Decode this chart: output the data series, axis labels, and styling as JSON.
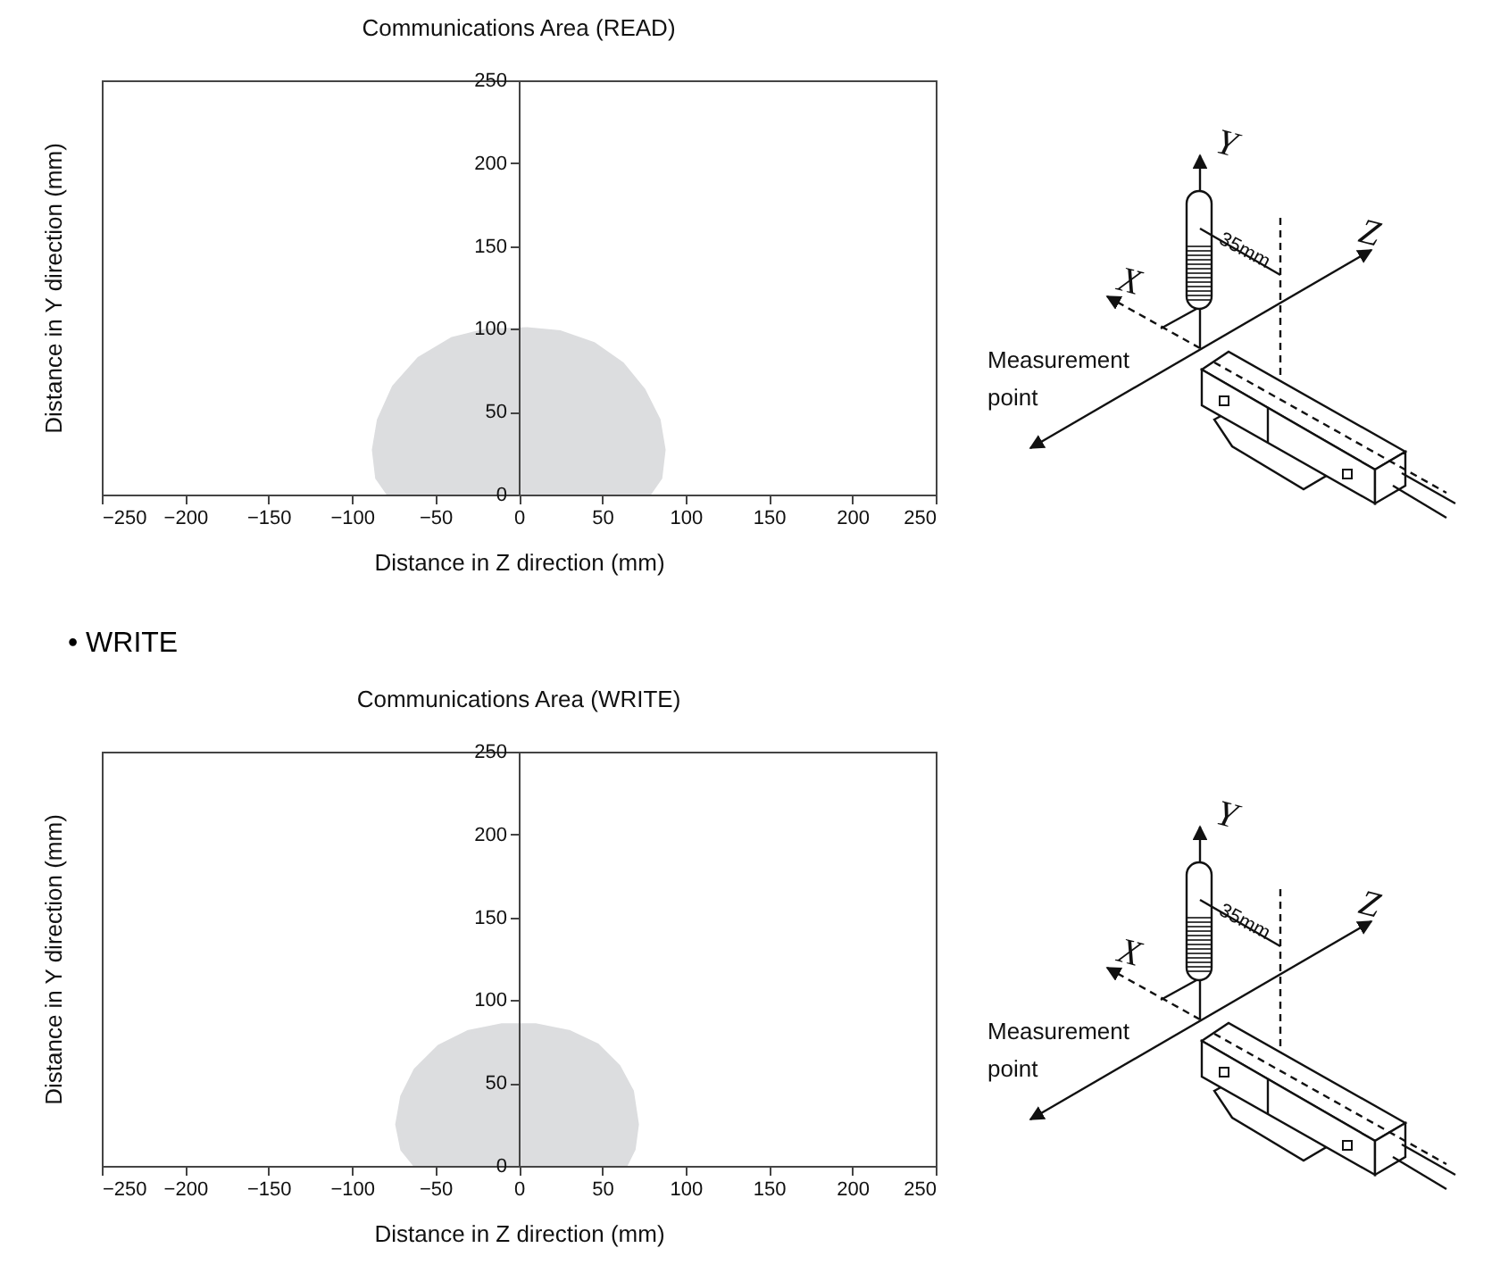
{
  "chart_data": [
    {
      "type": "area",
      "title": "Communications Area (READ)",
      "xlabel": "Distance in Z direction (mm)",
      "ylabel": "Distance in Y direction (mm)",
      "x": [
        -78,
        -85,
        -87,
        -84,
        -75,
        -60,
        -40,
        -20,
        5,
        25,
        45,
        62,
        75,
        84,
        87,
        85,
        78
      ],
      "series": [
        {
          "color": "#dcdddf",
          "values": [
            0,
            10,
            27,
            45,
            65,
            82,
            94,
            99,
            100,
            98,
            91,
            79,
            63,
            45,
            27,
            10,
            0
          ]
        }
      ],
      "xlim": [
        -250,
        250
      ],
      "xticks": [
        -250,
        -200,
        -150,
        -100,
        -50,
        0,
        50,
        100,
        150,
        200,
        250
      ],
      "ylim": [
        0,
        250
      ],
      "yticks": [
        0,
        50,
        100,
        150,
        200,
        250
      ],
      "grid": false,
      "annotations": [
        "Y",
        "Z",
        "X",
        "35mm",
        "Measurement point"
      ]
    },
    {
      "type": "area",
      "title": "Communications Area (WRITE)",
      "xlabel": "Distance in Z direction (mm)",
      "ylabel": "Distance in Y direction (mm)",
      "x": [
        -62,
        -70,
        -73,
        -70,
        -62,
        -48,
        -30,
        -10,
        10,
        30,
        47,
        60,
        68,
        71,
        69,
        64
      ],
      "series": [
        {
          "color": "#dcdddf",
          "values": [
            0,
            10,
            25,
            42,
            58,
            72,
            81,
            85,
            85,
            81,
            73,
            60,
            45,
            25,
            10,
            0
          ]
        }
      ],
      "xlim": [
        -250,
        250
      ],
      "xticks": [
        -250,
        -200,
        -150,
        -100,
        -50,
        0,
        50,
        100,
        150,
        200,
        250
      ],
      "ylim": [
        0,
        250
      ],
      "yticks": [
        0,
        50,
        100,
        150,
        200,
        250
      ],
      "grid": false,
      "annotations": [
        "Y",
        "Z",
        "X",
        "35mm",
        "Measurement point",
        "• WRITE"
      ]
    }
  ]
}
